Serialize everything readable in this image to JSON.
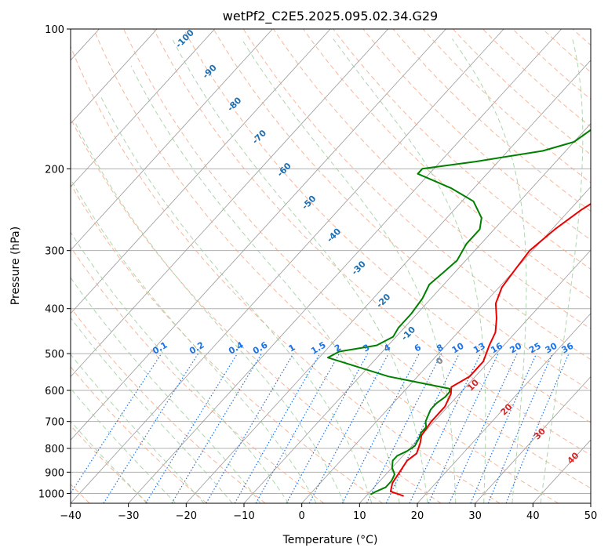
{
  "chart_data": {
    "type": "line",
    "title": "wetPf2_C2E5.2025.095.02.34.G29",
    "xlabel": "Temperature (°C)",
    "ylabel": "Pressure (hPa)",
    "xlim": [
      -40,
      50
    ],
    "ylim": [
      1050,
      100
    ],
    "y_scale": "log",
    "grid": true,
    "x_ticks": [
      "−40",
      "−30",
      "−20",
      "−10",
      "0",
      "10",
      "20",
      "30",
      "40",
      "50"
    ],
    "y_ticks": [
      {
        "p": 100,
        "label": "100"
      },
      {
        "p": 200,
        "label": "200"
      },
      {
        "p": 300,
        "label": "300"
      },
      {
        "p": 400,
        "label": "400"
      },
      {
        "p": 500,
        "label": "500"
      },
      {
        "p": 600,
        "label": "600"
      },
      {
        "p": 700,
        "label": "700"
      },
      {
        "p": 800,
        "label": "800"
      },
      {
        "p": 900,
        "label": "900"
      },
      {
        "p": 1000,
        "label": "1000"
      }
    ],
    "series": [
      {
        "color": "#ee0000",
        "points": [
          [
            16.5,
            1013
          ],
          [
            13.5,
            990
          ],
          [
            12.5,
            950
          ],
          [
            12,
            900
          ],
          [
            11.5,
            850
          ],
          [
            12,
            820
          ],
          [
            11,
            780
          ],
          [
            10,
            750
          ],
          [
            9.5,
            700
          ],
          [
            9.5,
            650
          ],
          [
            8.5,
            610
          ],
          [
            7.5,
            590
          ],
          [
            9,
            560
          ],
          [
            9,
            520
          ],
          [
            7.5,
            480
          ],
          [
            6.5,
            450
          ],
          [
            4.5,
            420
          ],
          [
            2,
            390
          ],
          [
            0.5,
            360
          ],
          [
            0,
            330
          ],
          [
            -0.5,
            300
          ],
          [
            0.5,
            270
          ],
          [
            2,
            245
          ],
          [
            4,
            225
          ],
          [
            6,
            205
          ],
          [
            8,
            185
          ],
          [
            11,
            165
          ],
          [
            14,
            148
          ],
          [
            16.5,
            135
          ],
          [
            18,
            125
          ],
          [
            20,
            115
          ],
          [
            20.5,
            108
          ],
          [
            20.5,
            100
          ]
        ]
      },
      {
        "color": "#008000",
        "points": [
          [
            10.5,
            1005
          ],
          [
            11,
            990
          ],
          [
            12,
            970
          ],
          [
            12,
            940
          ],
          [
            11.5,
            910
          ],
          [
            10,
            880
          ],
          [
            9,
            850
          ],
          [
            9,
            830
          ],
          [
            10,
            810
          ],
          [
            10.5,
            790
          ],
          [
            10,
            760
          ],
          [
            9.5,
            740
          ],
          [
            9.5,
            720
          ],
          [
            8.5,
            700
          ],
          [
            8,
            680
          ],
          [
            7.5,
            660
          ],
          [
            7.5,
            640
          ],
          [
            8,
            620
          ],
          [
            8,
            605
          ],
          [
            7.5,
            595
          ],
          [
            -5,
            560
          ],
          [
            -18.5,
            510
          ],
          [
            -17.5,
            495
          ],
          [
            -12,
            480
          ],
          [
            -10.5,
            460
          ],
          [
            -11,
            440
          ],
          [
            -11,
            410
          ],
          [
            -11.5,
            380
          ],
          [
            -12.5,
            355
          ],
          [
            -12,
            335
          ],
          [
            -11.5,
            315
          ],
          [
            -12.5,
            290
          ],
          [
            -12.5,
            270
          ],
          [
            -14,
            255
          ],
          [
            -18,
            235
          ],
          [
            -24,
            220
          ],
          [
            -32,
            205
          ],
          [
            -32,
            200
          ],
          [
            -24,
            193
          ],
          [
            -14,
            183
          ],
          [
            -10,
            175
          ],
          [
            -9,
            165
          ],
          [
            -8.5,
            150
          ],
          [
            -8,
            140
          ],
          [
            -8,
            130
          ],
          [
            -8.5,
            122
          ],
          [
            -8.5,
            115
          ],
          [
            -7,
            108
          ],
          [
            -3,
            100
          ]
        ]
      }
    ],
    "dry_adiabat_labels": [
      "-100",
      "-90",
      "-80",
      "-70",
      "-60",
      "-50",
      "-40",
      "-30",
      "-20",
      "-10",
      "0",
      "10",
      "20",
      "30",
      "40"
    ],
    "mixing_ratio_labels": [
      "0.1",
      "0.2",
      "0.4",
      "0.6",
      "1",
      "1.5",
      "2",
      "3",
      "4",
      "6",
      "8",
      "10",
      "13",
      "16",
      "20",
      "25",
      "30",
      "36"
    ]
  },
  "colors": {
    "temperature": "#ee0000",
    "dewpoint": "#008000",
    "dry_adiabat": "#f4a582",
    "moist_adiabat": "#99cc99",
    "mixing_ratio": "#1a73e8",
    "isotherm": "#999999",
    "dry_label_cold": "#1f6fb0",
    "dry_label_warm": "#d62728",
    "dry_label_zero": "#888888"
  }
}
